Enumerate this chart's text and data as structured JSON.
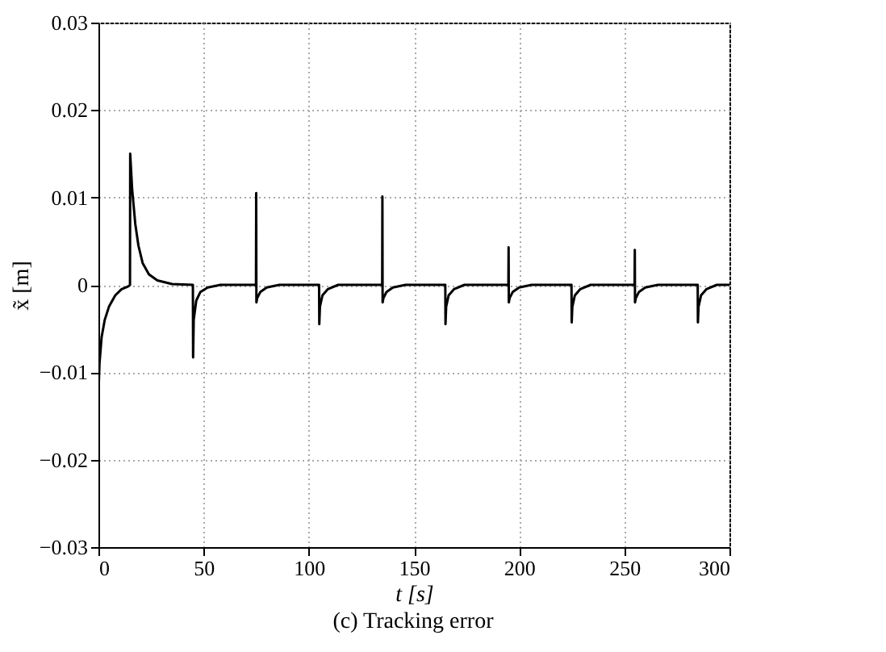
{
  "chart_data": {
    "type": "line",
    "xlabel": "t [s]",
    "ylabel": "x̃ [m]",
    "annotations": [
      "(c) Tracking error"
    ],
    "xlim": [
      0,
      300
    ],
    "xticks": [
      0,
      50,
      100,
      150,
      200,
      250,
      300
    ],
    "ylim": [
      -0.03,
      0.03
    ],
    "yticks": [
      -0.03,
      -0.02,
      -0.01,
      {
        "value": 0,
        "label": "0"
      },
      0.01,
      0.02,
      0.03
    ],
    "grid": true,
    "marker": "none",
    "line_style": "solid",
    "series": [
      {
        "color": "#000000",
        "x": [
          0,
          0.5,
          1.5,
          3,
          5,
          8,
          11,
          14,
          15,
          15.1,
          16,
          17.5,
          19,
          21,
          24,
          28,
          35,
          44.9,
          45,
          45.3,
          46.5,
          48.5,
          52,
          58,
          74.9,
          75,
          75.1,
          75.5,
          77,
          80,
          86,
          104.9,
          105,
          105.3,
          106.5,
          109,
          114,
          134.9,
          135,
          135.1,
          135.5,
          137,
          140,
          146,
          164.9,
          165,
          165.3,
          166.5,
          169,
          174,
          194.9,
          195,
          195.1,
          195.5,
          197,
          200,
          206,
          224.9,
          225,
          225.3,
          226.5,
          229,
          234,
          254.9,
          255,
          255.1,
          255.5,
          257,
          260,
          266,
          284.9,
          285,
          285.3,
          286.5,
          289,
          294,
          300
        ],
        "values": [
          -0.0125,
          -0.009,
          -0.006,
          -0.004,
          -0.0025,
          -0.0012,
          -0.0005,
          -0.0002,
          0.0,
          0.015,
          0.011,
          0.007,
          0.0045,
          0.0025,
          0.0012,
          0.0005,
          0.0001,
          0.0,
          -0.0083,
          -0.004,
          -0.0018,
          -0.0008,
          -0.0003,
          0.0,
          0.0,
          0.0105,
          -0.002,
          -0.0015,
          -0.0008,
          -0.0003,
          0.0,
          0.0,
          -0.0045,
          -0.0025,
          -0.0012,
          -0.0005,
          0.0,
          0.0,
          0.0101,
          -0.002,
          -0.0015,
          -0.0008,
          -0.0003,
          0.0,
          0.0,
          -0.0045,
          -0.0025,
          -0.0012,
          -0.0005,
          0.0,
          0.0,
          0.0043,
          -0.002,
          -0.0015,
          -0.0008,
          -0.0003,
          0.0,
          0.0,
          -0.0043,
          -0.0025,
          -0.0012,
          -0.0005,
          0.0,
          0.0,
          0.004,
          -0.002,
          -0.0015,
          -0.0008,
          -0.0003,
          0.0,
          0.0,
          -0.0043,
          -0.0025,
          -0.0012,
          -0.0005,
          0.0,
          0.0
        ]
      }
    ]
  }
}
